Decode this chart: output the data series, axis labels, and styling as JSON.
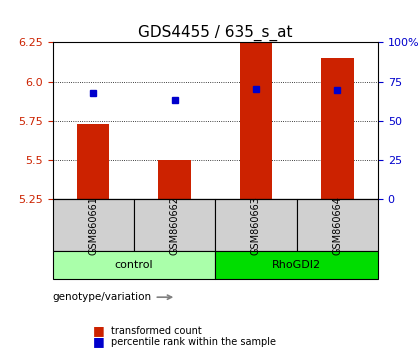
{
  "title": "GDS4455 / 635_s_at",
  "samples": [
    "GSM860661",
    "GSM860662",
    "GSM860663",
    "GSM860664"
  ],
  "bar_values": [
    5.73,
    5.5,
    6.25,
    6.15
  ],
  "blue_values": [
    5.925,
    5.885,
    5.955,
    5.945
  ],
  "ymin": 5.25,
  "ymax": 6.25,
  "yticks_left": [
    5.25,
    5.5,
    5.75,
    6.0,
    6.25
  ],
  "yticks_right_vals": [
    5.25,
    5.5,
    5.75,
    6.0,
    6.25
  ],
  "yticks_right_labels": [
    "0",
    "25",
    "50",
    "75",
    "100%"
  ],
  "bar_color": "#cc2200",
  "blue_color": "#0000cc",
  "bar_width": 0.4,
  "group_labels": [
    "control",
    "RhoGDI2"
  ],
  "group_colors": [
    "#aaffaa",
    "#00dd00"
  ],
  "group_ranges": [
    [
      0,
      2
    ],
    [
      2,
      4
    ]
  ],
  "xlabel": "genotype/variation",
  "legend_bar": "transformed count",
  "legend_blue": "percentile rank within the sample",
  "title_fontsize": 11,
  "axis_label_fontsize": 8,
  "tick_fontsize": 8
}
